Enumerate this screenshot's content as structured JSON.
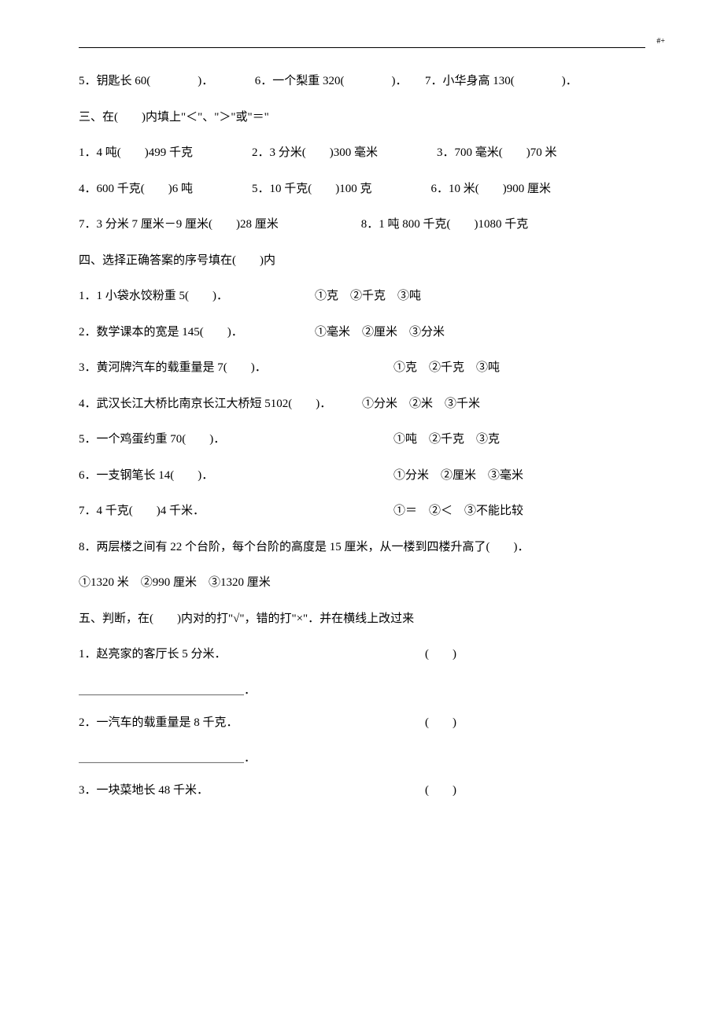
{
  "text_color": "#000000",
  "background_color": "#ffffff",
  "font_size": 15,
  "top_marker": "#+",
  "q2_line5": "5．钥匙长 60(　　　　)．　　　　6．一个梨重 320(　　　　)．　　7．小华身高 130(　　　　)．",
  "section3_title": "三、在(　　)内填上\"＜\"、\"＞\"或\"＝\"",
  "q3_1": "1．4 吨(　　)499 千克　　　　　2．3 分米(　　)300 毫米　　　　　3．700 毫米(　　)70 米",
  "q3_2": "4．600 千克(　　)6 吨　　　　　5．10 千克(　　)100 克　　　　　6．10 米(　　)900 厘米",
  "q3_3": "7．3 分米 7 厘米－9 厘米(　　)28 厘米　　　　　　　8．1 吨 800 千克(　　)1080 千克",
  "section4_title": "四、选择正确答案的序号填在(　　)内",
  "q4_1_l": "1．1 小袋水饺粉重 5(　　)．",
  "q4_1_r": "①克　②千克　③吨",
  "q4_2_l": "2．数学课本的宽是 145(　　)．",
  "q4_2_r": "①毫米　②厘米　③分米",
  "q4_3_l": "3．黄河牌汽车的载重量是 7(　　)．",
  "q4_3_r": "①克　②千克　③吨",
  "q4_4_l": "4．武汉长江大桥比南京长江大桥短 5102(　　)．",
  "q4_4_r": "①分米　②米　③千米",
  "q4_5_l": "5．一个鸡蛋约重 70(　　)．",
  "q4_5_r": "①吨　②千克　③克",
  "q4_6_l": "6．一支钢笔长 14(　　)．",
  "q4_6_r": "①分米　②厘米　③毫米",
  "q4_7_l": "7．4 千克(　　)4 千米．",
  "q4_7_r": "①＝　②＜　③不能比较",
  "q4_8": "8．两层楼之间有 22 个台阶，每个台阶的高度是 15 厘米，从一楼到四楼升高了(　　)．",
  "q4_8_options": "①1320 米　②990 厘米　③1320 厘米",
  "section5_title": "五、判断，在(　　)内对的打\"√\"，错的打\"×\"．并在横线上改过来",
  "q5_1_l": "1．赵亮家的客厅长 5 分米．",
  "q5_1_r": "(　　)",
  "q5_2_l": "2．一汽车的载重量是 8 千克．",
  "q5_2_r": "(　　)",
  "q5_3_l": "3．一块菜地长 48 千米．",
  "q5_3_r": "(　　)",
  "blank_line": "＿＿＿＿＿＿＿＿＿＿＿＿＿＿．"
}
